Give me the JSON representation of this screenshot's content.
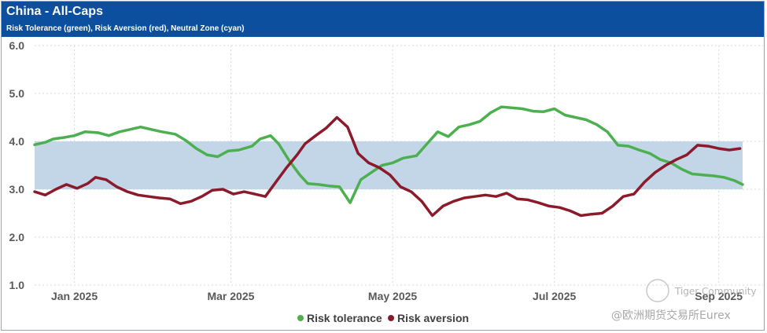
{
  "header": {
    "title": "China - All-Caps",
    "subtitle": "Risk Tolerance (green), Risk Aversion (red), Neutral Zone (cyan)"
  },
  "watermark": {
    "community": "Tiger Community",
    "brand": "@欧洲期货交易所Eurex"
  },
  "colors": {
    "header_bg": "#0b4f9e",
    "tolerance": "#4caf50",
    "aversion": "#8b1a2b",
    "neutral_zone": "#c3d6e8"
  },
  "chart_data": {
    "type": "line",
    "title": "China - All-Caps",
    "subtitle": "Risk Tolerance (green), Risk Aversion (red), Neutral Zone (cyan)",
    "x_unit": "day index (0 = Dec 1, 2024)",
    "x_range": [
      0,
      305
    ],
    "x_ticks": [
      {
        "x": 31,
        "label": "Jan 2025"
      },
      {
        "x": 90,
        "label": "Mar 2025"
      },
      {
        "x": 151,
        "label": "May 2025"
      },
      {
        "x": 212,
        "label": "Jul 2025"
      },
      {
        "x": 274,
        "label": "Sep 2025"
      }
    ],
    "ylim": [
      1.0,
      6.0
    ],
    "y_ticks": [
      "1.0",
      "2.0",
      "3.0",
      "4.0",
      "5.0",
      "6.0"
    ],
    "neutral_zone": [
      3.0,
      4.0
    ],
    "legend": [
      "Risk tolerance",
      "Risk aversion"
    ],
    "legend_position": "bottom-center",
    "series": [
      {
        "name": "Risk tolerance",
        "color": "#4caf50",
        "points": [
          [
            16,
            3.93
          ],
          [
            20,
            3.98
          ],
          [
            23,
            4.05
          ],
          [
            27,
            4.08
          ],
          [
            31,
            4.12
          ],
          [
            35,
            4.2
          ],
          [
            40,
            4.18
          ],
          [
            44,
            4.12
          ],
          [
            48,
            4.2
          ],
          [
            52,
            4.25
          ],
          [
            56,
            4.3
          ],
          [
            60,
            4.25
          ],
          [
            64,
            4.2
          ],
          [
            69,
            4.15
          ],
          [
            73,
            4.02
          ],
          [
            77,
            3.85
          ],
          [
            81,
            3.72
          ],
          [
            85,
            3.68
          ],
          [
            89,
            3.8
          ],
          [
            93,
            3.82
          ],
          [
            98,
            3.9
          ],
          [
            101,
            4.05
          ],
          [
            105,
            4.12
          ],
          [
            108,
            3.95
          ],
          [
            112,
            3.6
          ],
          [
            116,
            3.3
          ],
          [
            119,
            3.12
          ],
          [
            123,
            3.1
          ],
          [
            127,
            3.07
          ],
          [
            131,
            3.05
          ],
          [
            135,
            2.72
          ],
          [
            139,
            3.2
          ],
          [
            143,
            3.35
          ],
          [
            147,
            3.5
          ],
          [
            151,
            3.55
          ],
          [
            155,
            3.65
          ],
          [
            160,
            3.7
          ],
          [
            164,
            3.95
          ],
          [
            168,
            4.2
          ],
          [
            172,
            4.1
          ],
          [
            176,
            4.3
          ],
          [
            180,
            4.35
          ],
          [
            184,
            4.42
          ],
          [
            188,
            4.6
          ],
          [
            192,
            4.72
          ],
          [
            196,
            4.7
          ],
          [
            200,
            4.68
          ],
          [
            204,
            4.63
          ],
          [
            208,
            4.62
          ],
          [
            212,
            4.68
          ],
          [
            216,
            4.55
          ],
          [
            220,
            4.5
          ],
          [
            224,
            4.45
          ],
          [
            228,
            4.35
          ],
          [
            232,
            4.2
          ],
          [
            236,
            3.92
          ],
          [
            240,
            3.9
          ],
          [
            244,
            3.82
          ],
          [
            248,
            3.75
          ],
          [
            252,
            3.62
          ],
          [
            256,
            3.55
          ],
          [
            260,
            3.42
          ],
          [
            264,
            3.32
          ],
          [
            268,
            3.3
          ],
          [
            272,
            3.28
          ],
          [
            276,
            3.25
          ],
          [
            280,
            3.18
          ],
          [
            283,
            3.1
          ]
        ]
      },
      {
        "name": "Risk aversion",
        "color": "#8b1a2b",
        "points": [
          [
            16,
            2.95
          ],
          [
            20,
            2.88
          ],
          [
            24,
            3.0
          ],
          [
            28,
            3.1
          ],
          [
            32,
            3.02
          ],
          [
            36,
            3.12
          ],
          [
            39,
            3.25
          ],
          [
            43,
            3.2
          ],
          [
            47,
            3.05
          ],
          [
            51,
            2.95
          ],
          [
            55,
            2.88
          ],
          [
            59,
            2.85
          ],
          [
            63,
            2.82
          ],
          [
            67,
            2.8
          ],
          [
            71,
            2.7
          ],
          [
            75,
            2.75
          ],
          [
            79,
            2.85
          ],
          [
            83,
            2.98
          ],
          [
            87,
            3.0
          ],
          [
            91,
            2.9
          ],
          [
            95,
            2.95
          ],
          [
            99,
            2.9
          ],
          [
            103,
            2.85
          ],
          [
            107,
            3.15
          ],
          [
            111,
            3.45
          ],
          [
            115,
            3.72
          ],
          [
            118,
            3.95
          ],
          [
            122,
            4.12
          ],
          [
            126,
            4.28
          ],
          [
            130,
            4.5
          ],
          [
            134,
            4.3
          ],
          [
            138,
            3.75
          ],
          [
            142,
            3.55
          ],
          [
            146,
            3.45
          ],
          [
            150,
            3.3
          ],
          [
            154,
            3.05
          ],
          [
            158,
            2.95
          ],
          [
            162,
            2.75
          ],
          [
            166,
            2.45
          ],
          [
            170,
            2.65
          ],
          [
            174,
            2.75
          ],
          [
            178,
            2.82
          ],
          [
            182,
            2.85
          ],
          [
            186,
            2.88
          ],
          [
            190,
            2.85
          ],
          [
            194,
            2.92
          ],
          [
            198,
            2.8
          ],
          [
            202,
            2.78
          ],
          [
            206,
            2.72
          ],
          [
            210,
            2.65
          ],
          [
            214,
            2.62
          ],
          [
            218,
            2.55
          ],
          [
            222,
            2.45
          ],
          [
            226,
            2.48
          ],
          [
            230,
            2.5
          ],
          [
            234,
            2.65
          ],
          [
            238,
            2.85
          ],
          [
            242,
            2.9
          ],
          [
            246,
            3.15
          ],
          [
            250,
            3.35
          ],
          [
            254,
            3.5
          ],
          [
            258,
            3.62
          ],
          [
            262,
            3.72
          ],
          [
            266,
            3.92
          ],
          [
            270,
            3.9
          ],
          [
            274,
            3.85
          ],
          [
            278,
            3.82
          ],
          [
            282,
            3.85
          ]
        ]
      }
    ]
  }
}
